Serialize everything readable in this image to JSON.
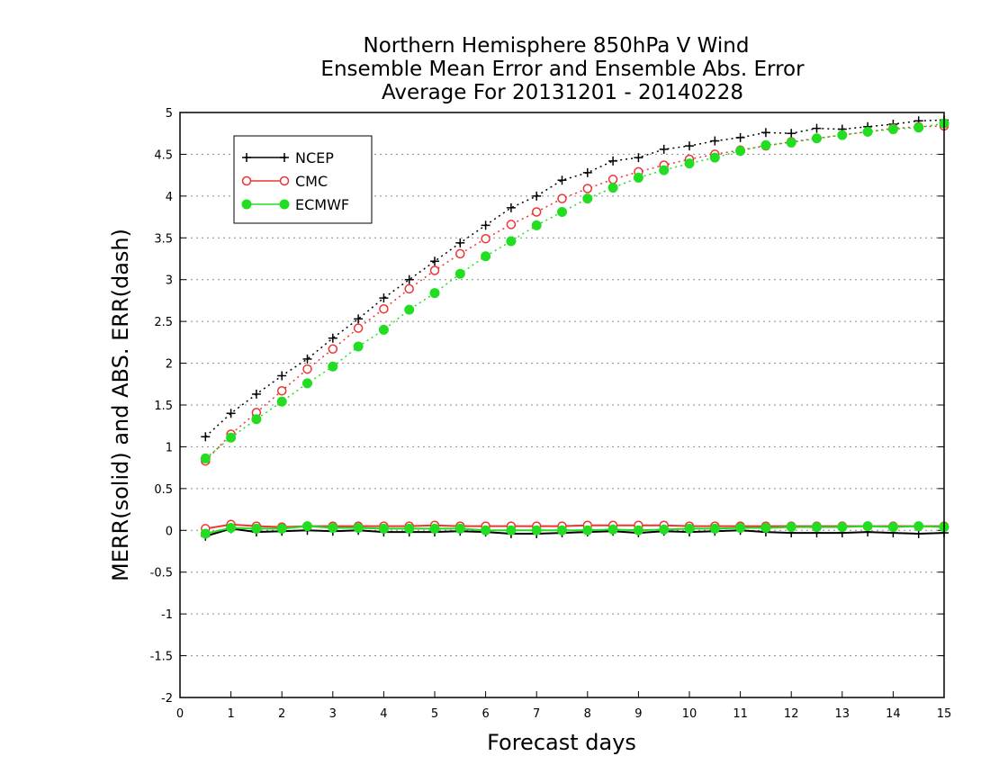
{
  "chart_data": {
    "type": "line",
    "title_lines": [
      "Northern Hemisphere 850hPa V Wind",
      "Ensemble Mean Error and Ensemble Abs. Error",
      "Average For 20131201 - 20140228"
    ],
    "xlabel": "Forecast days",
    "ylabel": "MERR(solid) and ABS. ERR(dash)",
    "xlim": [
      0,
      15
    ],
    "ylim": [
      -2,
      5
    ],
    "xticks": [
      0,
      1,
      2,
      3,
      4,
      5,
      6,
      7,
      8,
      9,
      10,
      11,
      12,
      13,
      14,
      15
    ],
    "yticks": [
      -2,
      -1.5,
      -1,
      -0.5,
      0,
      0.5,
      1,
      1.5,
      2,
      2.5,
      3,
      3.5,
      4,
      4.5,
      5
    ],
    "ytick_labels": [
      "-2",
      "-1.5",
      "-1",
      "-0.5",
      "0",
      "0.5",
      "1",
      "1.5",
      "2",
      "2.5",
      "3",
      "3.5",
      "4",
      "4.5",
      "5"
    ],
    "grid": "horizontal dotted",
    "legend_position": "top-left",
    "x": [
      0.5,
      1,
      1.5,
      2,
      2.5,
      3,
      3.5,
      4,
      4.5,
      5,
      5.5,
      6,
      6.5,
      7,
      7.5,
      8,
      8.5,
      9,
      9.5,
      10,
      10.5,
      11,
      11.5,
      12,
      12.5,
      13,
      13.5,
      14,
      14.5,
      15
    ],
    "series": [
      {
        "name": "NCEP",
        "color": "#000000",
        "marker": "plus",
        "abs_error": [
          1.12,
          1.4,
          1.63,
          1.85,
          2.05,
          2.3,
          2.53,
          2.78,
          3.0,
          3.22,
          3.44,
          3.65,
          3.86,
          4.0,
          4.19,
          4.28,
          4.42,
          4.46,
          4.56,
          4.6,
          4.66,
          4.7,
          4.76,
          4.75,
          4.81,
          4.8,
          4.83,
          4.86,
          4.9,
          4.91
        ],
        "mean_error": [
          -0.07,
          0.02,
          -0.02,
          -0.01,
          0.0,
          -0.01,
          0.0,
          -0.02,
          -0.02,
          -0.02,
          -0.01,
          -0.02,
          -0.04,
          -0.04,
          -0.03,
          -0.02,
          -0.01,
          -0.03,
          -0.01,
          -0.02,
          -0.01,
          0.0,
          -0.02,
          -0.03,
          -0.03,
          -0.03,
          -0.02,
          -0.03,
          -0.04,
          -0.03
        ]
      },
      {
        "name": "CMC",
        "color": "#ee3333",
        "marker": "open-circle",
        "abs_error": [
          0.83,
          1.15,
          1.41,
          1.67,
          1.93,
          2.17,
          2.42,
          2.65,
          2.89,
          3.11,
          3.31,
          3.49,
          3.66,
          3.81,
          3.97,
          4.09,
          4.2,
          4.29,
          4.37,
          4.44,
          4.5,
          4.55,
          4.6,
          4.65,
          4.69,
          4.73,
          4.77,
          4.81,
          4.83,
          4.84
        ],
        "mean_error": [
          0.02,
          0.07,
          0.05,
          0.04,
          0.05,
          0.05,
          0.05,
          0.05,
          0.05,
          0.06,
          0.05,
          0.05,
          0.05,
          0.05,
          0.05,
          0.06,
          0.06,
          0.06,
          0.06,
          0.05,
          0.05,
          0.05,
          0.05,
          0.05,
          0.05,
          0.05,
          0.05,
          0.05,
          0.05,
          0.05
        ]
      },
      {
        "name": "ECMWF",
        "color": "#22dd22",
        "marker": "filled-circle",
        "abs_error": [
          0.86,
          1.11,
          1.33,
          1.54,
          1.76,
          1.96,
          2.2,
          2.4,
          2.64,
          2.84,
          3.07,
          3.28,
          3.46,
          3.65,
          3.81,
          3.97,
          4.1,
          4.22,
          4.31,
          4.39,
          4.46,
          4.54,
          4.61,
          4.64,
          4.69,
          4.73,
          4.77,
          4.8,
          4.82,
          4.87
        ],
        "mean_error": [
          -0.04,
          0.03,
          0.02,
          0.02,
          0.05,
          0.03,
          0.03,
          0.02,
          0.02,
          0.02,
          0.02,
          0.0,
          0.0,
          0.0,
          0.0,
          0.0,
          0.01,
          0.0,
          0.01,
          0.02,
          0.02,
          0.03,
          0.03,
          0.04,
          0.04,
          0.04,
          0.05,
          0.04,
          0.05,
          0.04
        ]
      }
    ]
  }
}
